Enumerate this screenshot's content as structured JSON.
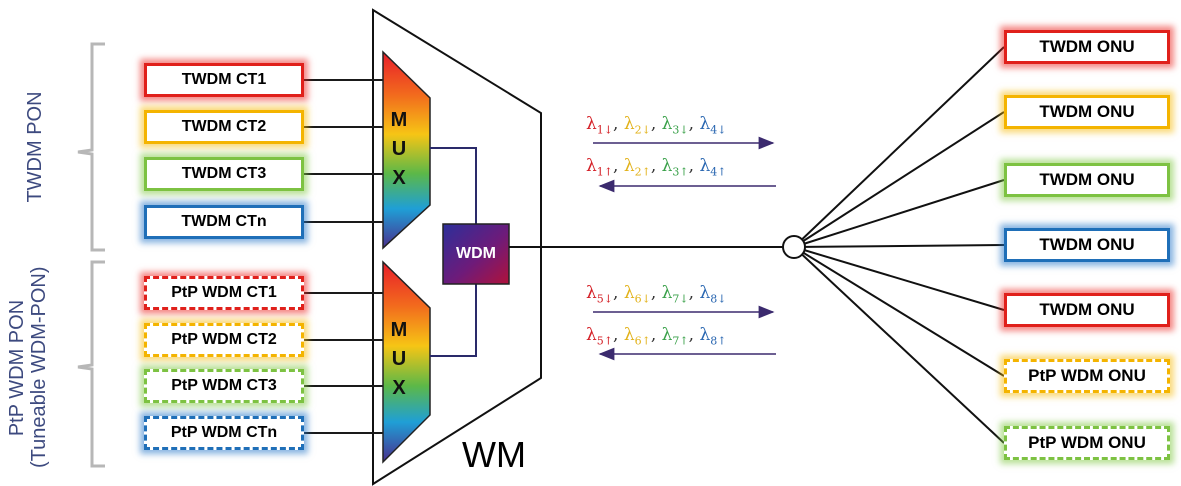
{
  "side_labels": {
    "twdm_pon": "TWDM PON",
    "ptp_pon": "PtP WDM PON",
    "ptp_pon_sub": "(Tuneable WDM-PON)"
  },
  "central_terminals": [
    {
      "label": "TWDM CT1",
      "color": "#e0201b",
      "style": "solid"
    },
    {
      "label": "TWDM CT2",
      "color": "#f4b400",
      "style": "solid"
    },
    {
      "label": "TWDM CT3",
      "color": "#7dc242",
      "style": "solid"
    },
    {
      "label": "TWDM CTn",
      "color": "#1f6fb8",
      "style": "solid"
    },
    {
      "label": "PtP WDM CT1",
      "color": "#e0201b",
      "style": "dashed"
    },
    {
      "label": "PtP WDM CT2",
      "color": "#f4b400",
      "style": "dashed"
    },
    {
      "label": "PtP WDM CT3",
      "color": "#7dc242",
      "style": "dashed"
    },
    {
      "label": "PtP WDM CTn",
      "color": "#1f6fb8",
      "style": "dashed"
    }
  ],
  "mux": {
    "letters": [
      "M",
      "U",
      "X"
    ]
  },
  "wdm_label": "WDM",
  "wm_label": "WM",
  "wavelengths": {
    "upper_down": [
      {
        "sym": "λ",
        "sub": "1↓",
        "color": "#d42027"
      },
      {
        "sym": "λ",
        "sub": "2↓",
        "color": "#e2b21a"
      },
      {
        "sym": "λ",
        "sub": "3↓",
        "color": "#3aa14a"
      },
      {
        "sym": "λ",
        "sub": "4↓",
        "color": "#2a67b1"
      }
    ],
    "upper_up": [
      {
        "sym": "λ",
        "sub": "1↑",
        "color": "#d42027"
      },
      {
        "sym": "λ",
        "sub": "2↑",
        "color": "#e2b21a"
      },
      {
        "sym": "λ",
        "sub": "3↑",
        "color": "#3aa14a"
      },
      {
        "sym": "λ",
        "sub": "4↑",
        "color": "#2a67b1"
      }
    ],
    "lower_down": [
      {
        "sym": "λ",
        "sub": "5↓",
        "color": "#d42027"
      },
      {
        "sym": "λ",
        "sub": "6↓",
        "color": "#e2b21a"
      },
      {
        "sym": "λ",
        "sub": "7↓",
        "color": "#3aa14a"
      },
      {
        "sym": "λ",
        "sub": "8↓",
        "color": "#2a67b1"
      }
    ],
    "lower_up": [
      {
        "sym": "λ",
        "sub": "5↑",
        "color": "#d42027"
      },
      {
        "sym": "λ",
        "sub": "6↑",
        "color": "#e2b21a"
      },
      {
        "sym": "λ",
        "sub": "7↑",
        "color": "#3aa14a"
      },
      {
        "sym": "λ",
        "sub": "8↑",
        "color": "#2a67b1"
      }
    ],
    "separator": ", "
  },
  "onus": [
    {
      "label": "TWDM ONU",
      "color": "#e0201b",
      "style": "solid"
    },
    {
      "label": "TWDM ONU",
      "color": "#f4b400",
      "style": "solid"
    },
    {
      "label": "TWDM ONU",
      "color": "#7dc242",
      "style": "solid"
    },
    {
      "label": "TWDM ONU",
      "color": "#1f6fb8",
      "style": "solid"
    },
    {
      "label": "TWDM ONU",
      "color": "#e0201b",
      "style": "solid"
    },
    {
      "label": "PtP WDM ONU",
      "color": "#f4b400",
      "style": "dashed"
    },
    {
      "label": "PtP WDM ONU",
      "color": "#7dc242",
      "style": "dashed"
    }
  ]
}
